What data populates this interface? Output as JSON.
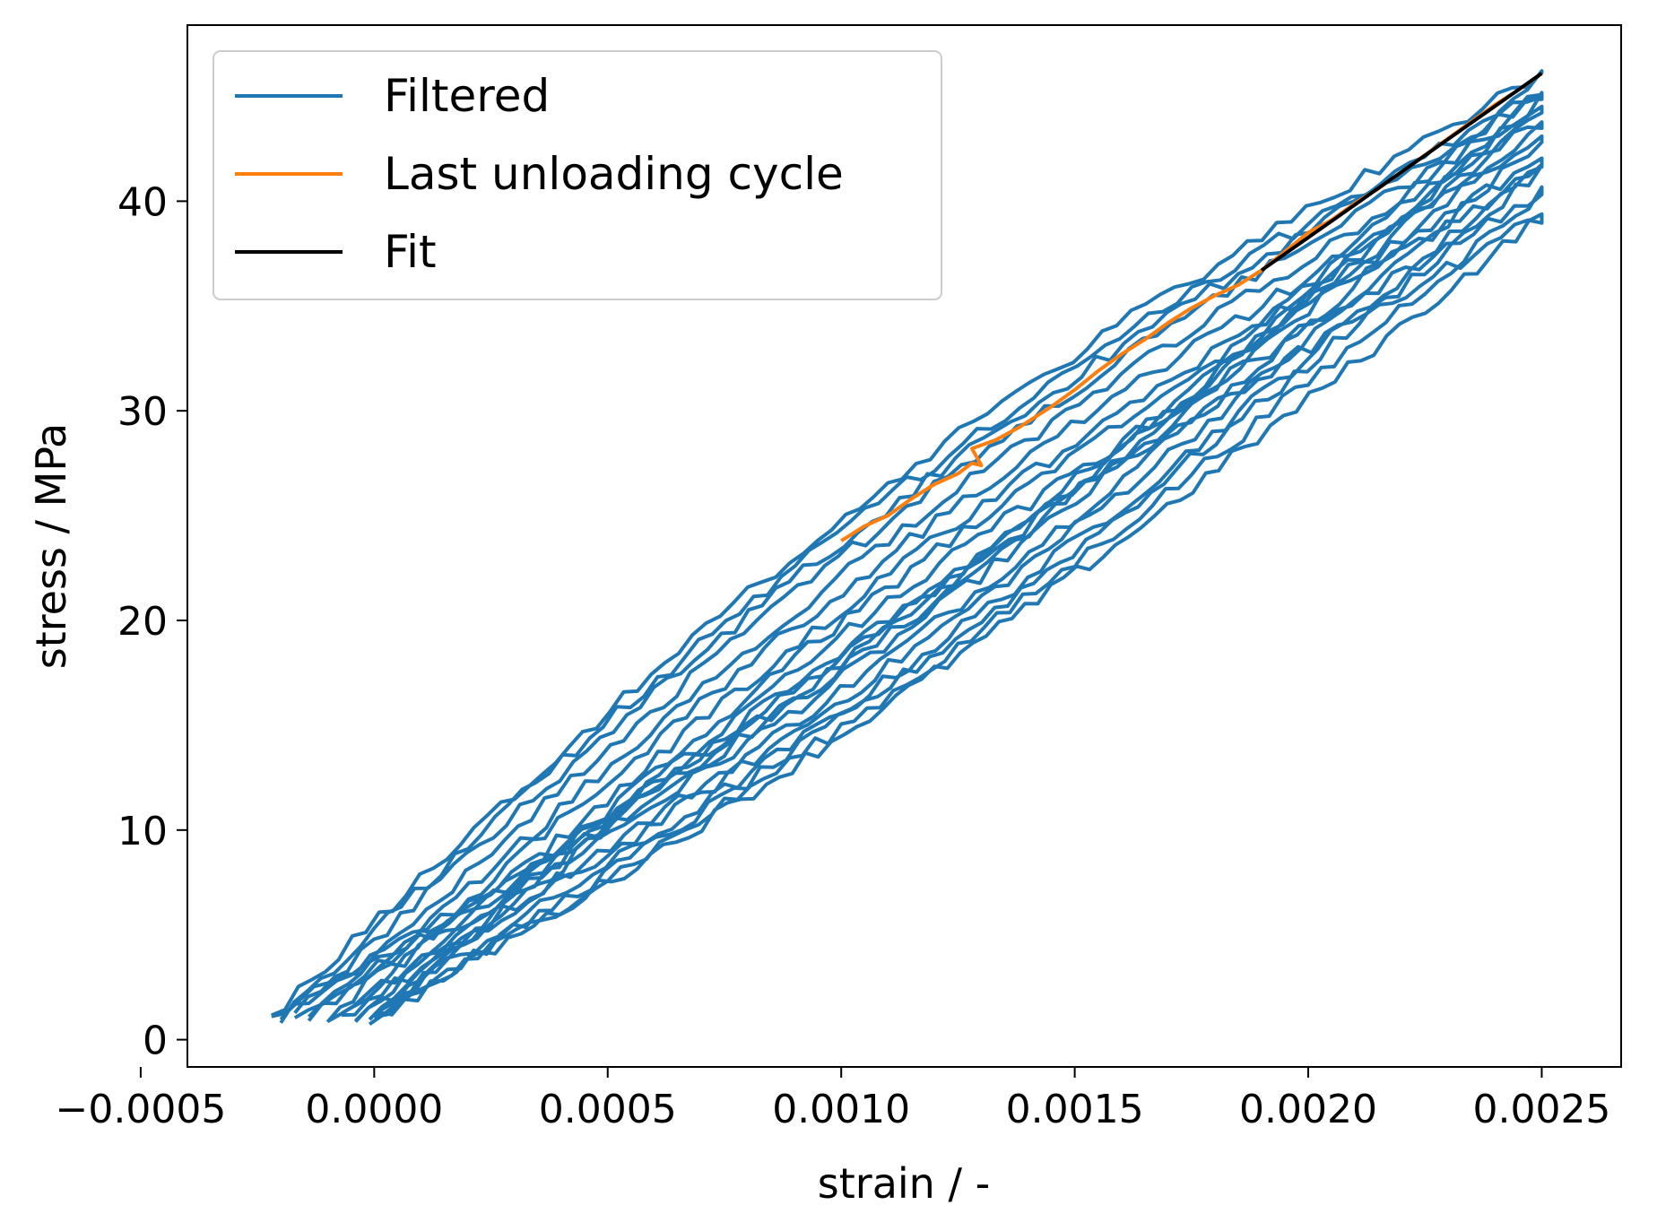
{
  "chart_data": {
    "type": "line",
    "title": "",
    "xlabel": "strain / -",
    "ylabel": "stress / MPa",
    "xlim": [
      -0.0004,
      0.00267
    ],
    "ylim": [
      -1.3,
      48.4
    ],
    "grid": false,
    "legend_position": "top-left",
    "x_ticks": [
      -0.0005,
      0.0,
      0.0005,
      0.001,
      0.0015,
      0.002,
      0.0025
    ],
    "x_tick_labels": [
      "−0.0005",
      "0.0000",
      "0.0005",
      "0.0010",
      "0.0015",
      "0.0020",
      "0.0025"
    ],
    "y_ticks": [
      0,
      10,
      20,
      30,
      40
    ],
    "y_tick_labels": [
      "0",
      "10",
      "20",
      "30",
      "40"
    ],
    "legend": [
      {
        "label": "Filtered",
        "color": "#1f77b4"
      },
      {
        "label": "Last unloading cycle",
        "color": "#ff7f0e"
      },
      {
        "label": "Fit",
        "color": "#000000"
      }
    ],
    "series": [
      {
        "name": "Filtered",
        "color": "#1f77b4",
        "cycles": [
          {
            "x0": -0.00022,
            "y0": 1.0,
            "x1": 0.0025,
            "y1": 46.0,
            "bulge": 1.6
          },
          {
            "x0": -0.0002,
            "y0": 1.1,
            "x1": 0.0025,
            "y1": 45.3,
            "bulge": 1.4
          },
          {
            "x0": -0.00017,
            "y0": 1.2,
            "x1": 0.0025,
            "y1": 45.0,
            "bulge": 1.2
          },
          {
            "x0": -0.00014,
            "y0": 1.1,
            "x1": 0.0025,
            "y1": 44.5,
            "bulge": 1.0
          },
          {
            "x0": -0.0001,
            "y0": 1.0,
            "x1": 0.0025,
            "y1": 43.8,
            "bulge": 0.8
          },
          {
            "x0": -7e-05,
            "y0": 1.1,
            "x1": 0.0025,
            "y1": 42.9,
            "bulge": 0.6
          },
          {
            "x0": -4e-05,
            "y0": 1.0,
            "x1": 0.0025,
            "y1": 42.0,
            "bulge": 0.4
          },
          {
            "x0": -1e-05,
            "y0": 1.0,
            "x1": 0.0025,
            "y1": 41.5,
            "bulge": 0.2
          },
          {
            "x0": 0.0,
            "y0": 1.0,
            "x1": 0.0025,
            "y1": 40.4,
            "bulge": 0.0
          },
          {
            "x0": 1e-05,
            "y0": 1.1,
            "x1": 0.0025,
            "y1": 39.3,
            "bulge": -0.2
          }
        ]
      },
      {
        "name": "Last unloading cycle",
        "color": "#ff7f0e",
        "x": [
          0.001,
          0.00105,
          0.0011,
          0.00115,
          0.0012,
          0.00125,
          0.00128,
          0.0013,
          0.00128,
          0.00133,
          0.00138,
          0.00145,
          0.0015,
          0.00155,
          0.0016,
          0.00165,
          0.0017,
          0.00175,
          0.0018,
          0.00185,
          0.0019,
          0.00195,
          0.002,
          0.00205,
          0.0021,
          0.00215,
          0.0022,
          0.00225,
          0.0023,
          0.00235,
          0.0024,
          0.00245,
          0.0025
        ],
        "y": [
          23.8,
          24.5,
          25.0,
          25.8,
          26.5,
          27.0,
          27.5,
          27.4,
          28.2,
          28.6,
          29.2,
          30.2,
          31.0,
          31.9,
          32.7,
          33.4,
          34.2,
          34.9,
          35.5,
          36.0,
          36.7,
          37.6,
          38.5,
          39.1,
          39.9,
          40.6,
          41.4,
          42.2,
          43.0,
          43.8,
          44.6,
          45.3,
          46.1
        ]
      },
      {
        "name": "Fit",
        "color": "#000000",
        "x": [
          0.0019,
          0.0025
        ],
        "y": [
          36.7,
          46.1
        ]
      }
    ]
  }
}
